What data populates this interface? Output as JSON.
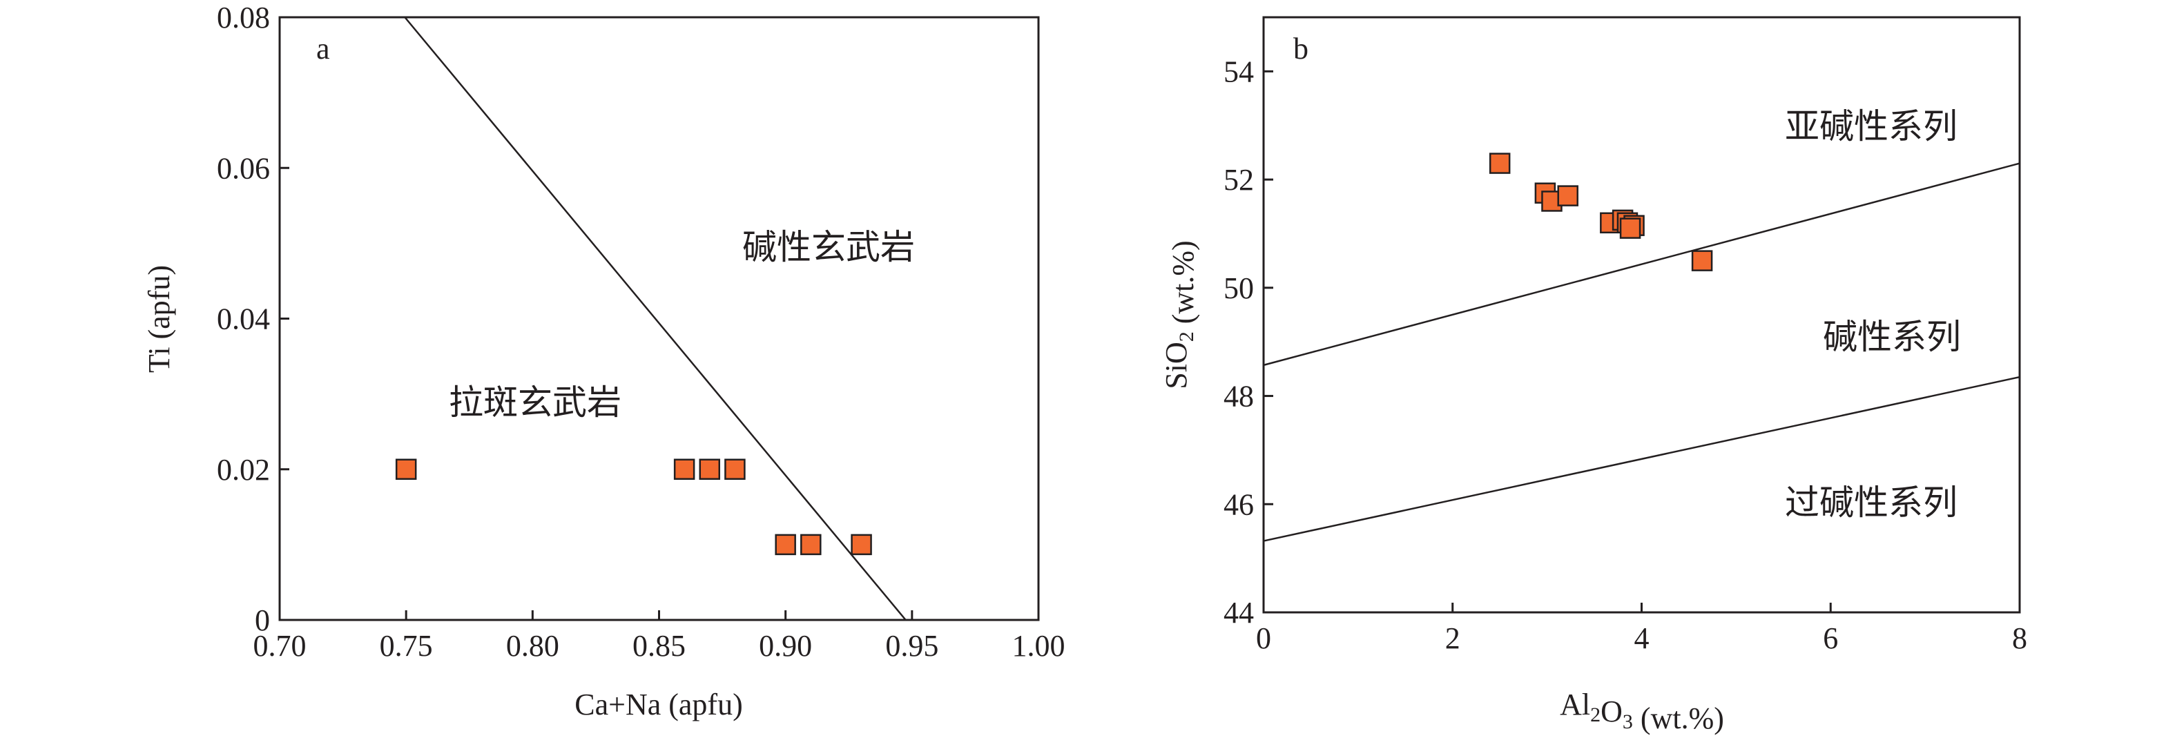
{
  "chart_data": [
    {
      "type": "scatter",
      "panel_label": "a",
      "xlabel": "Ca+Na (apfu)",
      "ylabel": "Ti (apfu)",
      "xlim": [
        0.7,
        1.0
      ],
      "ylim": [
        0,
        0.08
      ],
      "x_ticks": [
        "0.70",
        "0.75",
        "0.80",
        "0.85",
        "0.90",
        "0.95",
        "1.00"
      ],
      "y_ticks": [
        "0",
        "0.02",
        "0.04",
        "0.06",
        "0.08"
      ],
      "grid": false,
      "marker_color": "#f26a2e",
      "points": [
        {
          "x": 0.75,
          "y": 0.02
        },
        {
          "x": 0.86,
          "y": 0.02
        },
        {
          "x": 0.87,
          "y": 0.02
        },
        {
          "x": 0.88,
          "y": 0.02
        },
        {
          "x": 0.9,
          "y": 0.01
        },
        {
          "x": 0.91,
          "y": 0.01
        },
        {
          "x": 0.93,
          "y": 0.01
        }
      ],
      "boundary_lines": [
        {
          "x": [
            0.7495,
            0.9475
          ],
          "y": [
            0.08,
            0
          ]
        }
      ],
      "regions": [
        "碱性玄武岩",
        "拉斑玄武岩"
      ]
    },
    {
      "type": "scatter",
      "panel_label": "b",
      "xlabel": "Al2O3 (wt.%)",
      "ylabel": "SiO2 (wt.%)",
      "xlim": [
        0,
        8
      ],
      "ylim": [
        44,
        55
      ],
      "x_ticks": [
        "0",
        "2",
        "4",
        "6",
        "8"
      ],
      "y_ticks": [
        "44",
        "46",
        "48",
        "50",
        "52",
        "54"
      ],
      "grid": false,
      "marker_color": "#f26a2e",
      "points": [
        {
          "x": 2.5,
          "y": 52.3
        },
        {
          "x": 2.98,
          "y": 51.75
        },
        {
          "x": 3.05,
          "y": 51.6
        },
        {
          "x": 3.22,
          "y": 51.7
        },
        {
          "x": 3.67,
          "y": 51.2
        },
        {
          "x": 3.8,
          "y": 51.25
        },
        {
          "x": 3.85,
          "y": 51.2
        },
        {
          "x": 3.92,
          "y": 51.15
        },
        {
          "x": 3.88,
          "y": 51.1
        },
        {
          "x": 4.64,
          "y": 50.5
        }
      ],
      "boundary_lines": [
        {
          "x": [
            0,
            8
          ],
          "y": [
            48.57,
            52.3
          ]
        },
        {
          "x": [
            0,
            8
          ],
          "y": [
            45.32,
            48.35
          ]
        }
      ],
      "regions": [
        "亚碱性系列",
        "碱性系列",
        "过碱性系列"
      ]
    }
  ]
}
